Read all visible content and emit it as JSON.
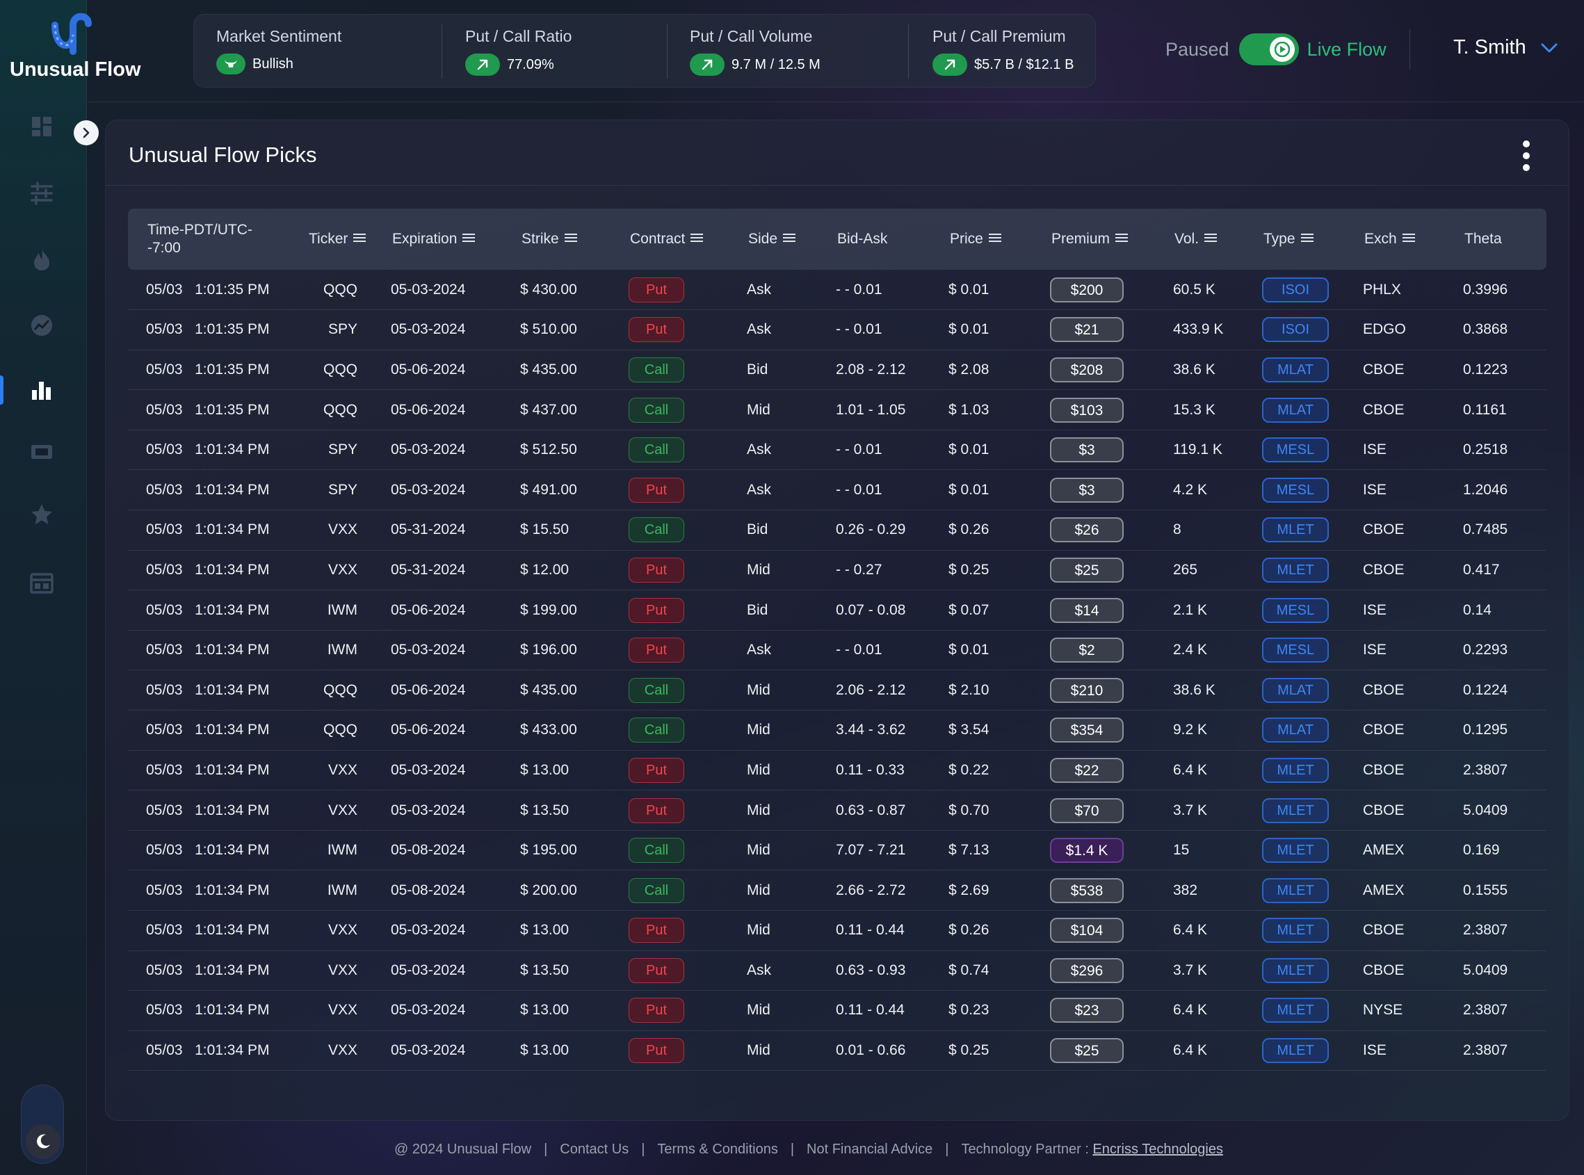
{
  "brand": {
    "name": "Unusual Flow"
  },
  "stats": [
    {
      "label": "Market Sentiment",
      "value": "Bullish",
      "icon": "bull-icon"
    },
    {
      "label": "Put / Call Ratio",
      "value": "77.09%",
      "icon": "arrow-up-right-icon"
    },
    {
      "label": "Put / Call Volume",
      "value": "9.7 M / 12.5 M",
      "icon": "arrow-up-right-icon"
    },
    {
      "label": "Put / Call Premium",
      "value": "$5.7 B / $12.1 B",
      "icon": "arrow-up-right-icon"
    }
  ],
  "toggle": {
    "off_label": "Paused",
    "on_label": "Live Flow",
    "state": "on"
  },
  "user": {
    "name": "T. Smith"
  },
  "card": {
    "title": "Unusual Flow Picks"
  },
  "table": {
    "columns": [
      "Time-PDT/UTC--7:00",
      "Ticker",
      "Expiration",
      "Strike",
      "Contract",
      "Side",
      "Bid-Ask",
      "Price",
      "Premium",
      "Vol.",
      "Type",
      "Exch",
      "Theta"
    ],
    "rows": [
      {
        "date": "05/03",
        "time": "1:01:35 PM",
        "ticker": "QQQ",
        "expiration": "05-03-2024",
        "strike": "$ 430.00",
        "contract": "Put",
        "side": "Ask",
        "bidask": "- - 0.01",
        "price": "$ 0.01",
        "premium": "$200",
        "vol": "60.5 K",
        "type": "ISOI",
        "exch": "PHLX",
        "theta": "0.3996"
      },
      {
        "date": "05/03",
        "time": "1:01:35 PM",
        "ticker": "SPY",
        "expiration": "05-03-2024",
        "strike": "$ 510.00",
        "contract": "Put",
        "side": "Ask",
        "bidask": "- - 0.01",
        "price": "$ 0.01",
        "premium": "$21",
        "vol": "433.9 K",
        "type": "ISOI",
        "exch": "EDGO",
        "theta": "0.3868"
      },
      {
        "date": "05/03",
        "time": "1:01:35 PM",
        "ticker": "QQQ",
        "expiration": "05-06-2024",
        "strike": "$ 435.00",
        "contract": "Call",
        "side": "Bid",
        "bidask": "2.08 - 2.12",
        "price": "$ 2.08",
        "premium": "$208",
        "vol": "38.6 K",
        "type": "MLAT",
        "exch": "CBOE",
        "theta": "0.1223"
      },
      {
        "date": "05/03",
        "time": "1:01:35 PM",
        "ticker": "QQQ",
        "expiration": "05-06-2024",
        "strike": "$ 437.00",
        "contract": "Call",
        "side": "Mid",
        "bidask": "1.01 - 1.05",
        "price": "$ 1.03",
        "premium": "$103",
        "vol": "15.3 K",
        "type": "MLAT",
        "exch": "CBOE",
        "theta": "0.1161"
      },
      {
        "date": "05/03",
        "time": "1:01:34 PM",
        "ticker": "SPY",
        "expiration": "05-03-2024",
        "strike": "$ 512.50",
        "contract": "Call",
        "side": "Ask",
        "bidask": "- - 0.01",
        "price": "$ 0.01",
        "premium": "$3",
        "vol": "119.1 K",
        "type": "MESL",
        "exch": "ISE",
        "theta": "0.2518"
      },
      {
        "date": "05/03",
        "time": "1:01:34 PM",
        "ticker": "SPY",
        "expiration": "05-03-2024",
        "strike": "$ 491.00",
        "contract": "Put",
        "side": "Ask",
        "bidask": "- - 0.01",
        "price": "$ 0.01",
        "premium": "$3",
        "vol": "4.2 K",
        "type": "MESL",
        "exch": "ISE",
        "theta": "1.2046"
      },
      {
        "date": "05/03",
        "time": "1:01:34 PM",
        "ticker": "VXX",
        "expiration": "05-31-2024",
        "strike": "$ 15.50",
        "contract": "Call",
        "side": "Bid",
        "bidask": "0.26 - 0.29",
        "price": "$ 0.26",
        "premium": "$26",
        "vol": "8",
        "type": "MLET",
        "exch": "CBOE",
        "theta": "0.7485"
      },
      {
        "date": "05/03",
        "time": "1:01:34 PM",
        "ticker": "VXX",
        "expiration": "05-31-2024",
        "strike": "$ 12.00",
        "contract": "Put",
        "side": "Mid",
        "bidask": "- - 0.27",
        "price": "$ 0.25",
        "premium": "$25",
        "vol": "265",
        "type": "MLET",
        "exch": "CBOE",
        "theta": "0.417"
      },
      {
        "date": "05/03",
        "time": "1:01:34 PM",
        "ticker": "IWM",
        "expiration": "05-06-2024",
        "strike": "$ 199.00",
        "contract": "Put",
        "side": "Bid",
        "bidask": "0.07 - 0.08",
        "price": "$ 0.07",
        "premium": "$14",
        "vol": "2.1 K",
        "type": "MESL",
        "exch": "ISE",
        "theta": "0.14"
      },
      {
        "date": "05/03",
        "time": "1:01:34 PM",
        "ticker": "IWM",
        "expiration": "05-03-2024",
        "strike": "$ 196.00",
        "contract": "Put",
        "side": "Ask",
        "bidask": "- - 0.01",
        "price": "$ 0.01",
        "premium": "$2",
        "vol": "2.4 K",
        "type": "MESL",
        "exch": "ISE",
        "theta": "0.2293"
      },
      {
        "date": "05/03",
        "time": "1:01:34 PM",
        "ticker": "QQQ",
        "expiration": "05-06-2024",
        "strike": "$ 435.00",
        "contract": "Call",
        "side": "Mid",
        "bidask": "2.06 - 2.12",
        "price": "$ 2.10",
        "premium": "$210",
        "vol": "38.6 K",
        "type": "MLAT",
        "exch": "CBOE",
        "theta": "0.1224"
      },
      {
        "date": "05/03",
        "time": "1:01:34 PM",
        "ticker": "QQQ",
        "expiration": "05-06-2024",
        "strike": "$ 433.00",
        "contract": "Call",
        "side": "Mid",
        "bidask": "3.44 - 3.62",
        "price": "$ 3.54",
        "premium": "$354",
        "vol": "9.2 K",
        "type": "MLAT",
        "exch": "CBOE",
        "theta": "0.1295"
      },
      {
        "date": "05/03",
        "time": "1:01:34 PM",
        "ticker": "VXX",
        "expiration": "05-03-2024",
        "strike": "$ 13.00",
        "contract": "Put",
        "side": "Mid",
        "bidask": "0.11 - 0.33",
        "price": "$ 0.22",
        "premium": "$22",
        "vol": "6.4 K",
        "type": "MLET",
        "exch": "CBOE",
        "theta": "2.3807"
      },
      {
        "date": "05/03",
        "time": "1:01:34 PM",
        "ticker": "VXX",
        "expiration": "05-03-2024",
        "strike": "$ 13.50",
        "contract": "Put",
        "side": "Mid",
        "bidask": "0.63 - 0.87",
        "price": "$ 0.70",
        "premium": "$70",
        "vol": "3.7 K",
        "type": "MLET",
        "exch": "CBOE",
        "theta": "5.0409"
      },
      {
        "date": "05/03",
        "time": "1:01:34 PM",
        "ticker": "IWM",
        "expiration": "05-08-2024",
        "strike": "$ 195.00",
        "contract": "Call",
        "side": "Mid",
        "bidask": "7.07 - 7.21",
        "price": "$ 7.13",
        "premium": "$1.4 K",
        "vol": "15",
        "type": "MLET",
        "exch": "AMEX",
        "theta": "0.169"
      },
      {
        "date": "05/03",
        "time": "1:01:34 PM",
        "ticker": "IWM",
        "expiration": "05-08-2024",
        "strike": "$ 200.00",
        "contract": "Call",
        "side": "Mid",
        "bidask": "2.66 - 2.72",
        "price": "$ 2.69",
        "premium": "$538",
        "vol": "382",
        "type": "MLET",
        "exch": "AMEX",
        "theta": "0.1555"
      },
      {
        "date": "05/03",
        "time": "1:01:34 PM",
        "ticker": "VXX",
        "expiration": "05-03-2024",
        "strike": "$ 13.00",
        "contract": "Put",
        "side": "Mid",
        "bidask": "0.11 - 0.44",
        "price": "$ 0.26",
        "premium": "$104",
        "vol": "6.4 K",
        "type": "MLET",
        "exch": "CBOE",
        "theta": "2.3807"
      },
      {
        "date": "05/03",
        "time": "1:01:34 PM",
        "ticker": "VXX",
        "expiration": "05-03-2024",
        "strike": "$ 13.50",
        "contract": "Put",
        "side": "Ask",
        "bidask": "0.63 - 0.93",
        "price": "$ 0.74",
        "premium": "$296",
        "vol": "3.7 K",
        "type": "MLET",
        "exch": "CBOE",
        "theta": "5.0409"
      },
      {
        "date": "05/03",
        "time": "1:01:34 PM",
        "ticker": "VXX",
        "expiration": "05-03-2024",
        "strike": "$ 13.00",
        "contract": "Put",
        "side": "Mid",
        "bidask": "0.11 - 0.44",
        "price": "$ 0.23",
        "premium": "$23",
        "vol": "6.4 K",
        "type": "MLET",
        "exch": "NYSE",
        "theta": "2.3807"
      },
      {
        "date": "05/03",
        "time": "1:01:34 PM",
        "ticker": "VXX",
        "expiration": "05-03-2024",
        "strike": "$ 13.00",
        "contract": "Put",
        "side": "Mid",
        "bidask": "0.01 - 0.66",
        "price": "$ 0.25",
        "premium": "$25",
        "vol": "6.4 K",
        "type": "MLET",
        "exch": "ISE",
        "theta": "2.3807"
      }
    ]
  },
  "footer": {
    "copyright": "@ 2024 Unusual Flow",
    "links": [
      "Contact Us",
      "Terms & Conditions",
      "Not Financial Advice"
    ],
    "partner_label": "Technology Partner :",
    "partner_name": "Encriss Technologies"
  },
  "sidebar": {
    "items": [
      "dashboard-icon",
      "sliders-icon",
      "fire-icon",
      "chart-line-icon",
      "bar-chart-icon",
      "ticket-icon",
      "star-icon",
      "calendar-icon"
    ],
    "active_index": 4
  },
  "colors": {
    "accent_blue": "#3e86f0",
    "green": "#1f9a4e",
    "put_red": "#f2454b",
    "call_green": "#3bb85c",
    "ask_orange": "#e0a548"
  }
}
